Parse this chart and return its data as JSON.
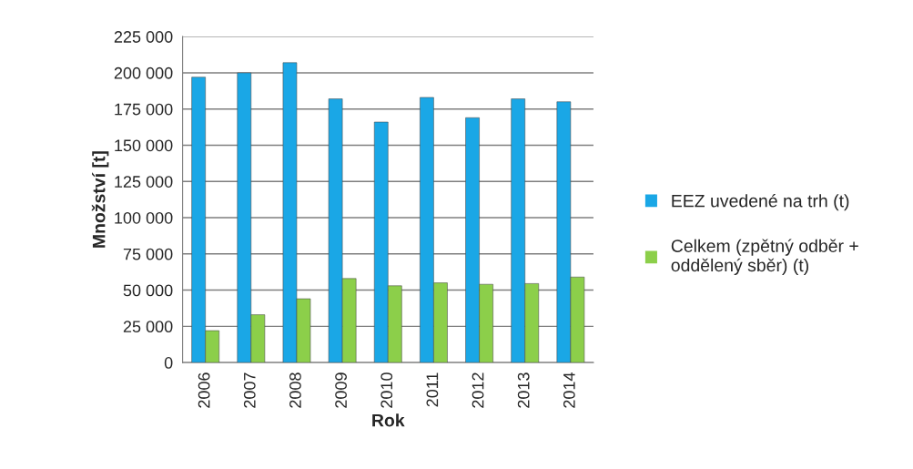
{
  "chart_data": {
    "type": "bar",
    "xlabel": "Rok",
    "ylabel": "Množství [t]",
    "categories": [
      "2006",
      "2007",
      "2008",
      "2009",
      "2010",
      "2011",
      "2012",
      "2013",
      "2014"
    ],
    "series": [
      {
        "name": "EEZ uvedené na trh (t)",
        "color": "#1aa7e6",
        "values": [
          197000,
          200000,
          207000,
          182000,
          166000,
          183000,
          169000,
          182000,
          180000
        ]
      },
      {
        "name": "Celkem (zpětný odběr +\noddělený sběr) (t)",
        "color": "#8ccf4a",
        "values": [
          22000,
          33000,
          44000,
          58000,
          53000,
          55000,
          54000,
          54500,
          59000
        ]
      }
    ],
    "ylim": [
      0,
      225000
    ],
    "yticks": [
      0,
      {
        "value": 25000,
        "label": "25 000"
      },
      {
        "value": 50000,
        "label": "50 000"
      },
      {
        "value": 75000,
        "label": "75 000"
      },
      {
        "value": 100000,
        "label": "100 000"
      },
      {
        "value": 125000,
        "label": "125 000"
      },
      {
        "value": 150000,
        "label": "150 000"
      },
      {
        "value": 175000,
        "label": "175 000"
      },
      {
        "value": 200000,
        "label": "200 000"
      },
      {
        "value": 225000,
        "label": "225 000"
      }
    ],
    "grid": "y",
    "legend": "right"
  }
}
